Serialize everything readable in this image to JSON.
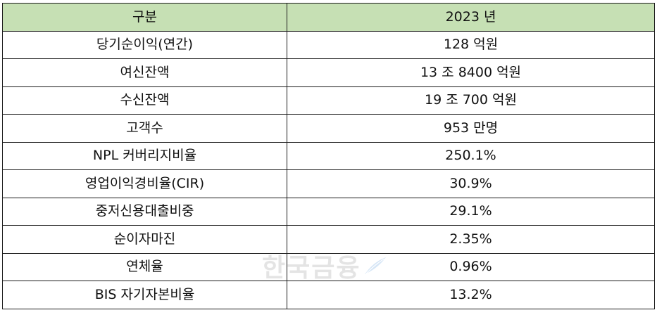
{
  "table": {
    "header": {
      "category": "구분",
      "year": "2023 년"
    },
    "rows": [
      {
        "label": "당기순이익(연간)",
        "value": "128 억원"
      },
      {
        "label": "여신잔액",
        "value": "13 조 8400 억원"
      },
      {
        "label": "수신잔액",
        "value": "19 조 700 억원"
      },
      {
        "label": "고객수",
        "value": "953 만명"
      },
      {
        "label": "NPL 커버리지비율",
        "value": "250.1%"
      },
      {
        "label": "영업이익경비율(CIR)",
        "value": "30.9%"
      },
      {
        "label": "중저신용대출비중",
        "value": "29.1%"
      },
      {
        "label": "순이자마진",
        "value": "2.35%"
      },
      {
        "label": "연체율",
        "value": "0.96%"
      },
      {
        "label": "BIS 자기자본비율",
        "value": "13.2%"
      }
    ]
  },
  "watermark": {
    "text": "한국금융",
    "icon": "feather-icon",
    "icon_color": "#4a90d9"
  },
  "colors": {
    "header_bg": "#c6e0b4",
    "border": "#1a1a1a"
  }
}
